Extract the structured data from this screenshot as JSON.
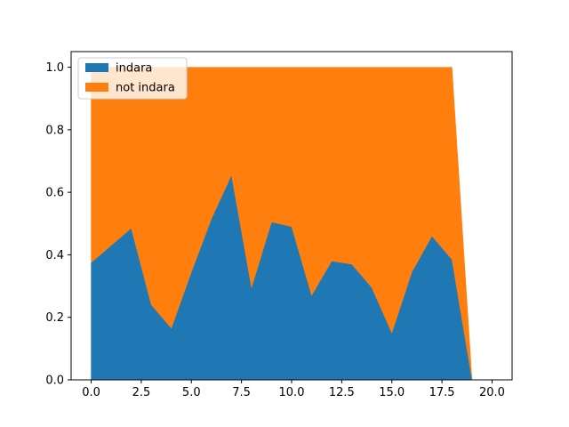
{
  "chart_data": {
    "type": "area",
    "stacked": true,
    "title": "",
    "xlabel": "",
    "ylabel": "",
    "xlim": [
      -1,
      21
    ],
    "ylim": [
      0,
      1.05
    ],
    "grid": false,
    "legend_position": "top-left",
    "x": [
      0,
      1,
      2,
      3,
      4,
      5,
      6,
      7,
      8,
      9,
      10,
      11,
      12,
      13,
      14,
      15,
      16,
      17,
      18,
      19
    ],
    "x_ticks": [
      "0.0",
      "2.5",
      "5.0",
      "7.5",
      "10.0",
      "12.5",
      "15.0",
      "17.5",
      "20.0"
    ],
    "x_tick_values": [
      0,
      2.5,
      5,
      7.5,
      10,
      12.5,
      15,
      17.5,
      20
    ],
    "y_ticks": [
      "0.0",
      "0.2",
      "0.4",
      "0.6",
      "0.8",
      "1.0"
    ],
    "y_tick_values": [
      0,
      0.2,
      0.4,
      0.6,
      0.8,
      1.0
    ],
    "series": [
      {
        "name": "indara",
        "color": "#1f77b4",
        "values": [
          0.375,
          0.43,
          0.485,
          0.24,
          0.165,
          0.345,
          0.515,
          0.655,
          0.295,
          0.505,
          0.49,
          0.27,
          0.38,
          0.37,
          0.295,
          0.15,
          0.345,
          0.46,
          0.385,
          0.0
        ]
      },
      {
        "name": "not indara",
        "color": "#ff7f0e",
        "values": [
          0.625,
          0.57,
          0.515,
          0.76,
          0.835,
          0.655,
          0.485,
          0.345,
          0.705,
          0.495,
          0.51,
          0.73,
          0.62,
          0.63,
          0.705,
          0.85,
          0.655,
          0.54,
          0.615,
          0.0
        ]
      }
    ]
  }
}
